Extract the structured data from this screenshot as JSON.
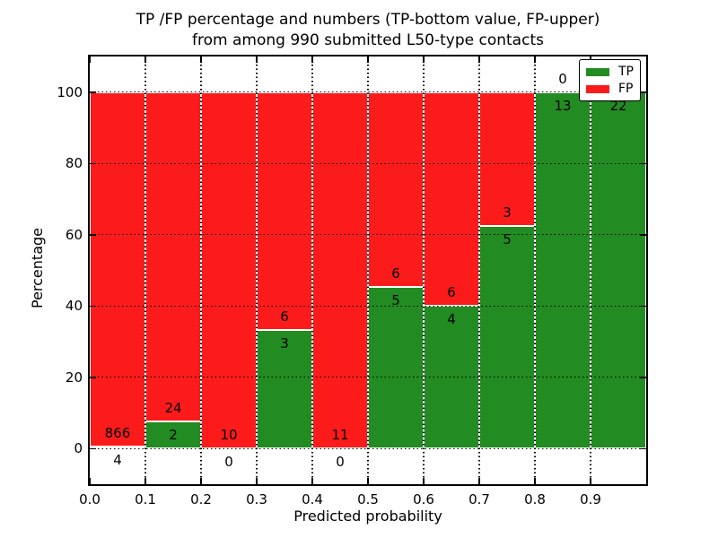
{
  "figure": {
    "background": "#ffffff"
  },
  "chart_data": {
    "type": "bar",
    "stacked": true,
    "orientation": "vertical",
    "title": "TP /FP percentage and numbers (TP-bottom value, FP-upper)",
    "subtitle": "from among 990 submitted L50-type contacts",
    "xlabel": "Predicted probability",
    "ylabel": "Percentage",
    "total_contacts": 990,
    "bin_width": 0.1,
    "bins": [
      0.0,
      0.1,
      0.2,
      0.3,
      0.4,
      0.5,
      0.6,
      0.7,
      0.8,
      0.9
    ],
    "series": [
      {
        "name": "TP",
        "color": "#228B22",
        "values": [
          4,
          2,
          0,
          3,
          0,
          5,
          4,
          5,
          13,
          22
        ]
      },
      {
        "name": "FP",
        "color": "#FB1B1B",
        "values": [
          866,
          24,
          10,
          6,
          11,
          6,
          6,
          3,
          0,
          0
        ]
      }
    ],
    "percent_tp": [
      0.46,
      7.69,
      0.0,
      33.33,
      0.0,
      45.45,
      40.0,
      62.5,
      100.0,
      100.0
    ],
    "xlim": [
      0.0,
      1.0
    ],
    "ylim": [
      -10,
      110
    ],
    "xticks": [
      0.0,
      0.1,
      0.2,
      0.3,
      0.4,
      0.5,
      0.6,
      0.7,
      0.8,
      0.9
    ],
    "yticks": [
      0,
      20,
      40,
      60,
      80,
      100
    ],
    "grid": "dotted",
    "bar_edge_color": "#ffffff",
    "legend": {
      "position": "upper right",
      "entries": [
        "TP",
        "FP"
      ]
    }
  }
}
